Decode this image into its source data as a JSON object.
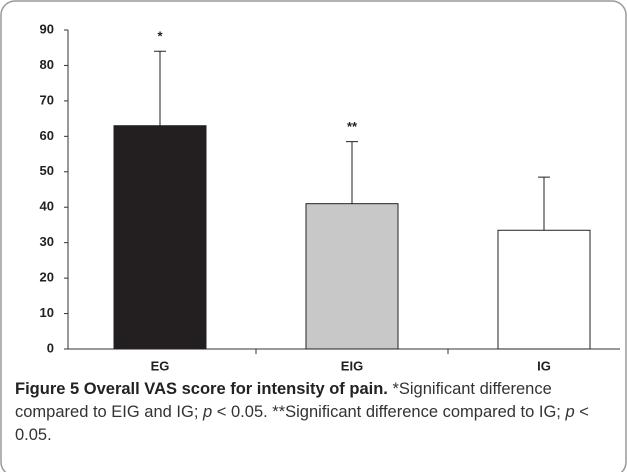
{
  "chart_data": {
    "type": "bar",
    "categories": [
      "EG",
      "EIG",
      "IG"
    ],
    "series": [
      {
        "values": [
          63,
          41,
          33.5
        ],
        "errors": [
          21,
          17.5,
          15
        ]
      }
    ],
    "colors": [
      "#231f20",
      "#c8c8c8",
      "#ffffff"
    ],
    "annotations": [
      "*",
      "**",
      null
    ],
    "ylim": [
      0,
      90
    ],
    "yticks": [
      0,
      10,
      20,
      30,
      40,
      50,
      60,
      70,
      80,
      90
    ],
    "grid": false
  },
  "caption": {
    "label": "Figure 5 Overall VAS score for intensity of pain.",
    "parts": [
      "*Significant difference compared to EIG and IG; ",
      "p",
      " < 0.05. **Significant difference compared to IG; ",
      "p",
      " < 0.05."
    ]
  }
}
